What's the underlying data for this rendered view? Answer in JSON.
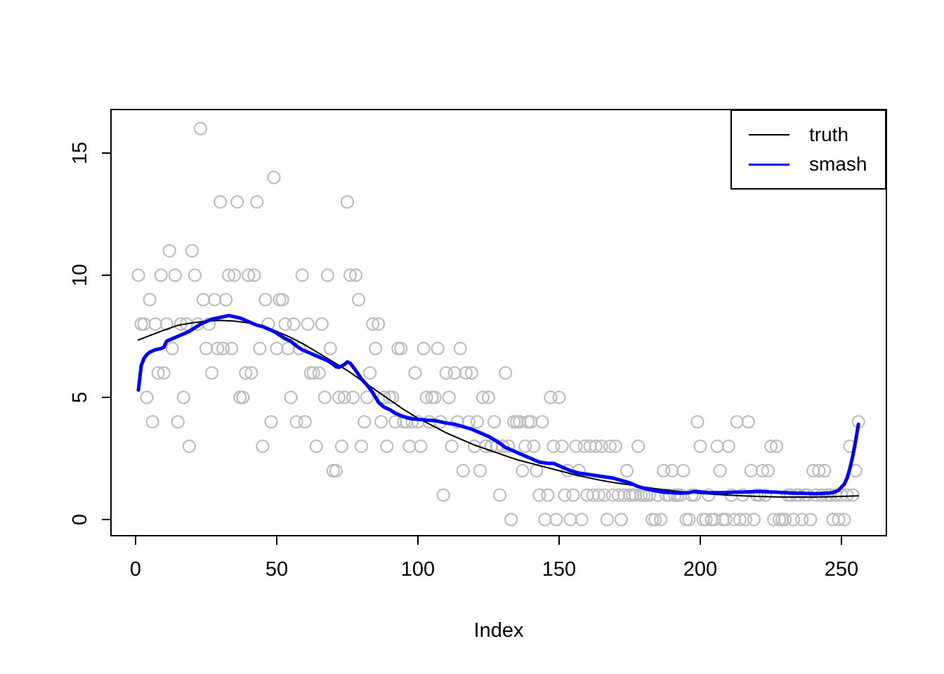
{
  "chart_data": {
    "type": "scatter+line",
    "title": "",
    "xlabel": "Index",
    "ylabel": "",
    "xlim": [
      -8.7,
      266
    ],
    "ylim": [
      -0.66,
      16.8
    ],
    "x_ticks": [
      0,
      50,
      100,
      150,
      200,
      250
    ],
    "y_ticks": [
      0,
      5,
      10,
      15
    ],
    "grid": "off",
    "legend_position": "topright",
    "legend": [
      {
        "name": "truth",
        "color": "#000000",
        "line_width": 2
      },
      {
        "name": "smash",
        "color": "#0000ff",
        "line_width": 3
      }
    ],
    "scatter_style": {
      "marker": "open-circle",
      "color": "#bebebe",
      "radius": 8.5,
      "stroke_width": 2.2
    },
    "scatter_x_start": 1,
    "scatter_y": [
      10,
      8,
      8,
      5,
      9,
      4,
      8,
      6,
      10,
      6,
      8,
      11,
      7,
      10,
      4,
      8,
      5,
      8,
      3,
      11,
      10,
      8,
      16,
      9,
      7,
      8,
      6,
      9,
      7,
      13,
      7,
      9,
      10,
      7,
      10,
      13,
      5,
      5,
      6,
      10,
      6,
      10,
      13,
      7,
      3,
      9,
      8,
      4,
      14,
      7,
      9,
      9,
      8,
      7,
      5,
      8,
      4,
      7,
      10,
      4,
      8,
      6,
      6,
      3,
      6,
      8,
      5,
      10,
      7,
      2,
      2,
      5,
      3,
      5,
      13,
      10,
      5,
      10,
      9,
      3,
      4,
      5,
      6,
      8,
      7,
      8,
      4,
      5,
      3,
      5,
      5,
      4,
      7,
      7,
      4,
      4,
      3,
      4,
      6,
      4,
      3,
      7,
      5,
      4,
      5,
      5,
      7,
      4,
      1,
      6,
      5,
      3,
      6,
      4,
      7,
      2,
      6,
      4,
      6,
      3,
      4,
      2,
      5,
      3,
      5,
      3,
      4,
      3,
      1,
      3,
      6,
      3,
      0,
      4,
      4,
      4,
      2,
      3,
      4,
      4,
      3,
      2,
      1,
      4,
      0,
      1,
      5,
      3,
      0,
      5,
      3,
      1,
      2,
      0,
      1,
      3,
      2,
      0,
      3,
      1,
      3,
      1,
      3,
      1,
      3,
      1,
      0,
      3,
      1,
      3,
      1,
      0,
      1,
      2,
      1,
      1,
      1,
      3,
      1,
      1,
      1,
      1,
      0,
      0,
      1,
      0,
      2,
      1,
      1,
      2,
      1,
      1,
      1,
      2,
      0,
      0,
      1,
      1,
      4,
      3,
      0,
      0,
      1,
      0,
      0,
      3,
      2,
      0,
      0,
      3,
      1,
      0,
      4,
      0,
      1,
      0,
      4,
      2,
      0,
      1,
      1,
      2,
      1,
      2,
      3,
      0,
      3,
      0,
      0,
      0,
      1,
      1,
      0,
      1,
      1,
      0,
      1,
      1,
      0,
      2,
      1,
      2,
      1,
      2,
      1,
      1,
      0,
      1,
      0,
      1,
      0,
      1,
      3,
      1,
      2,
      4
    ],
    "series": [
      {
        "name": "truth",
        "color": "#000000",
        "width": 2,
        "points": [
          [
            1,
            7.35
          ],
          [
            10,
            7.75
          ],
          [
            15,
            7.95
          ],
          [
            20,
            8.05
          ],
          [
            25,
            8.12
          ],
          [
            30,
            8.15
          ],
          [
            35,
            8.12
          ],
          [
            40,
            8.05
          ],
          [
            45,
            7.9
          ],
          [
            50,
            7.7
          ],
          [
            55,
            7.45
          ],
          [
            60,
            7.15
          ],
          [
            65,
            6.8
          ],
          [
            70,
            6.45
          ],
          [
            75,
            6.1
          ],
          [
            80,
            5.7
          ],
          [
            85,
            5.3
          ],
          [
            90,
            4.9
          ],
          [
            95,
            4.5
          ],
          [
            100,
            4.15
          ],
          [
            105,
            3.85
          ],
          [
            110,
            3.55
          ],
          [
            115,
            3.3
          ],
          [
            120,
            3.05
          ],
          [
            125,
            2.85
          ],
          [
            130,
            2.65
          ],
          [
            135,
            2.45
          ],
          [
            140,
            2.3
          ],
          [
            145,
            2.15
          ],
          [
            150,
            2.0
          ],
          [
            155,
            1.85
          ],
          [
            160,
            1.72
          ],
          [
            165,
            1.6
          ],
          [
            170,
            1.5
          ],
          [
            175,
            1.42
          ],
          [
            180,
            1.33
          ],
          [
            185,
            1.25
          ],
          [
            190,
            1.18
          ],
          [
            195,
            1.12
          ],
          [
            200,
            1.07
          ],
          [
            205,
            1.03
          ],
          [
            210,
            1.0
          ],
          [
            215,
            0.97
          ],
          [
            220,
            0.95
          ],
          [
            225,
            0.93
          ],
          [
            230,
            0.92
          ],
          [
            235,
            0.92
          ],
          [
            240,
            0.92
          ],
          [
            245,
            0.93
          ],
          [
            250,
            0.95
          ],
          [
            256,
            0.97
          ]
        ]
      },
      {
        "name": "smash",
        "color": "#0000ff",
        "width": 5,
        "points": [
          [
            1,
            5.3
          ],
          [
            2,
            6.3
          ],
          [
            3,
            6.6
          ],
          [
            4,
            6.75
          ],
          [
            5,
            6.85
          ],
          [
            7,
            6.95
          ],
          [
            9,
            7.0
          ],
          [
            10,
            7.05
          ],
          [
            11,
            7.3
          ],
          [
            13,
            7.4
          ],
          [
            15,
            7.5
          ],
          [
            17,
            7.6
          ],
          [
            19,
            7.7
          ],
          [
            21,
            7.85
          ],
          [
            23,
            8.0
          ],
          [
            25,
            8.1
          ],
          [
            27,
            8.2
          ],
          [
            29,
            8.25
          ],
          [
            31,
            8.3
          ],
          [
            33,
            8.35
          ],
          [
            35,
            8.3
          ],
          [
            37,
            8.25
          ],
          [
            39,
            8.15
          ],
          [
            41,
            8.05
          ],
          [
            43,
            7.95
          ],
          [
            45,
            7.9
          ],
          [
            47,
            7.8
          ],
          [
            49,
            7.7
          ],
          [
            51,
            7.55
          ],
          [
            53,
            7.4
          ],
          [
            55,
            7.3
          ],
          [
            57,
            7.1
          ],
          [
            59,
            6.95
          ],
          [
            61,
            6.85
          ],
          [
            63,
            6.75
          ],
          [
            64,
            6.7
          ],
          [
            66,
            6.6
          ],
          [
            68,
            6.5
          ],
          [
            70,
            6.35
          ],
          [
            71,
            6.25
          ],
          [
            72,
            6.23
          ],
          [
            74,
            6.35
          ],
          [
            75,
            6.45
          ],
          [
            76,
            6.4
          ],
          [
            78,
            6.1
          ],
          [
            80,
            5.75
          ],
          [
            82,
            5.5
          ],
          [
            84,
            5.2
          ],
          [
            86,
            4.8
          ],
          [
            88,
            4.6
          ],
          [
            90,
            4.5
          ],
          [
            92,
            4.35
          ],
          [
            94,
            4.25
          ],
          [
            96,
            4.17
          ],
          [
            98,
            4.12
          ],
          [
            100,
            4.1
          ],
          [
            103,
            4.07
          ],
          [
            106,
            4.05
          ],
          [
            108,
            4.0
          ],
          [
            110,
            3.95
          ],
          [
            113,
            3.9
          ],
          [
            116,
            3.8
          ],
          [
            119,
            3.7
          ],
          [
            122,
            3.55
          ],
          [
            125,
            3.4
          ],
          [
            128,
            3.2
          ],
          [
            131,
            2.95
          ],
          [
            134,
            2.8
          ],
          [
            137,
            2.65
          ],
          [
            140,
            2.5
          ],
          [
            143,
            2.35
          ],
          [
            146,
            2.3
          ],
          [
            148,
            2.3
          ],
          [
            151,
            2.15
          ],
          [
            154,
            2.0
          ],
          [
            157,
            1.9
          ],
          [
            160,
            1.85
          ],
          [
            163,
            1.8
          ],
          [
            166,
            1.75
          ],
          [
            169,
            1.7
          ],
          [
            172,
            1.6
          ],
          [
            175,
            1.5
          ],
          [
            178,
            1.35
          ],
          [
            181,
            1.25
          ],
          [
            184,
            1.18
          ],
          [
            187,
            1.12
          ],
          [
            190,
            1.1
          ],
          [
            193,
            1.08
          ],
          [
            196,
            1.1
          ],
          [
            198,
            1.15
          ],
          [
            200,
            1.13
          ],
          [
            203,
            1.1
          ],
          [
            206,
            1.1
          ],
          [
            209,
            1.1
          ],
          [
            212,
            1.12
          ],
          [
            215,
            1.12
          ],
          [
            218,
            1.14
          ],
          [
            221,
            1.15
          ],
          [
            224,
            1.13
          ],
          [
            227,
            1.12
          ],
          [
            230,
            1.1
          ],
          [
            233,
            1.08
          ],
          [
            236,
            1.08
          ],
          [
            239,
            1.06
          ],
          [
            242,
            1.06
          ],
          [
            245,
            1.08
          ],
          [
            247,
            1.1
          ],
          [
            249,
            1.2
          ],
          [
            251,
            1.45
          ],
          [
            252,
            1.7
          ],
          [
            253,
            2.1
          ],
          [
            254,
            2.6
          ],
          [
            255,
            3.2
          ],
          [
            256,
            3.9
          ]
        ]
      }
    ]
  }
}
